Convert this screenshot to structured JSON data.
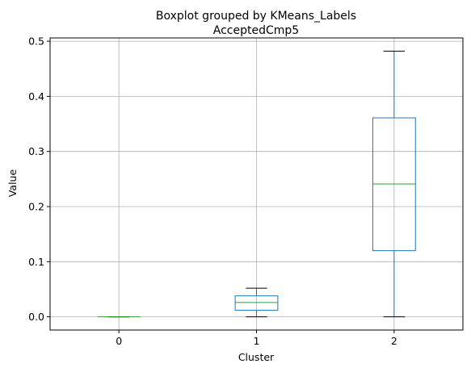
{
  "chart_data": {
    "type": "boxplot",
    "suptitle": "Boxplot grouped by KMeans_Labels",
    "title": "AcceptedCmp5",
    "xlabel": "Cluster",
    "ylabel": "Value",
    "categories": [
      "0",
      "1",
      "2"
    ],
    "ylim": [
      -0.024,
      0.506
    ],
    "yticks": [
      "0.0",
      "0.1",
      "0.2",
      "0.3",
      "0.4",
      "0.5"
    ],
    "grid": true,
    "boxes": [
      {
        "category": "0",
        "whisker_low": 0.0,
        "q1": 0.0,
        "median": 0.0,
        "q3": 0.0,
        "whisker_high": 0.0
      },
      {
        "category": "1",
        "whisker_low": 0.0,
        "q1": 0.012,
        "median": 0.026,
        "q3": 0.038,
        "whisker_high": 0.052
      },
      {
        "category": "2",
        "whisker_low": 0.0,
        "q1": 0.12,
        "median": 0.241,
        "q3": 0.361,
        "whisker_high": 0.482
      }
    ],
    "colors": {
      "box": "#1f77b4",
      "median": "#2ca02c",
      "whisker_cap": "#000000",
      "grid": "#b0b0b0"
    }
  }
}
